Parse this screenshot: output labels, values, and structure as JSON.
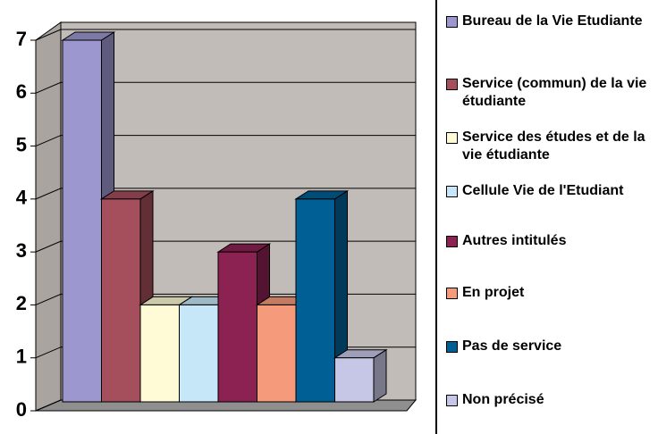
{
  "chart_data": {
    "type": "bar",
    "series": [
      {
        "name": "Bureau de la Vie Etudiante",
        "color": "#9c97cf",
        "values": [
          7
        ]
      },
      {
        "name": "Service (commun) de la vie étudiante",
        "color": "#a54e5c",
        "values": [
          4
        ]
      },
      {
        "name": "Service des études et de la vie étudiante",
        "color": "#fffbd6",
        "values": [
          2
        ]
      },
      {
        "name": "Cellule Vie de l'Etudiant",
        "color": "#c6e7f7",
        "values": [
          2
        ]
      },
      {
        "name": "Autres intitulés",
        "color": "#8b2252",
        "values": [
          3
        ]
      },
      {
        "name": "En projet",
        "color": "#f59a7a",
        "values": [
          2
        ]
      },
      {
        "name": "Pas de service",
        "color": "#005f94",
        "values": [
          4
        ]
      },
      {
        "name": "Non précisé",
        "color": "#c6c6e6",
        "values": [
          1
        ]
      }
    ],
    "ylim": [
      0,
      7
    ],
    "yticks": [
      0,
      1,
      2,
      3,
      4,
      5,
      6,
      7
    ],
    "grid": true,
    "legend": "right"
  }
}
